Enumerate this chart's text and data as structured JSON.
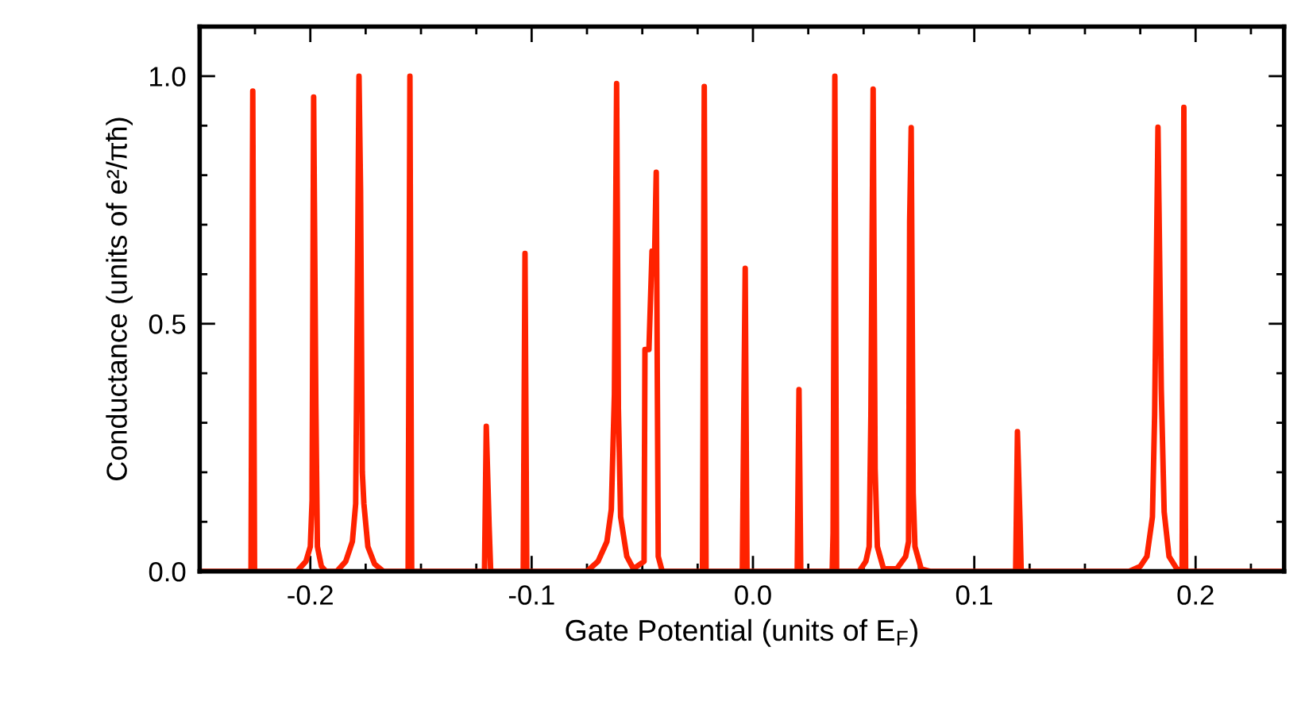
{
  "chart_data": {
    "type": "line",
    "xlabel": "Gate Potential (units of E$_{F}$)",
    "ylabel": "Conductance (units of e²/πħ)",
    "series": [
      {
        "color": "#ff2200",
        "x": [
          -0.25,
          -0.2268,
          -0.226,
          -0.2252,
          -0.206,
          -0.202,
          -0.2,
          -0.1992,
          -0.1985,
          -0.1975,
          -0.1968,
          -0.195,
          -0.193,
          -0.188,
          -0.184,
          -0.181,
          -0.1795,
          -0.1788,
          -0.178,
          -0.1773,
          -0.1765,
          -0.1758,
          -0.174,
          -0.171,
          -0.167,
          -0.1558,
          -0.155,
          -0.1542,
          -0.1213,
          -0.1205,
          -0.1192,
          -0.1185,
          -0.1038,
          -0.103,
          -0.1022,
          -0.075,
          -0.07,
          -0.066,
          -0.064,
          -0.0626,
          -0.0616,
          -0.0608,
          -0.0598,
          -0.057,
          -0.054,
          -0.0492,
          -0.0488,
          -0.047,
          -0.0456,
          -0.0444,
          -0.0437,
          -0.0428,
          -0.041,
          -0.0228,
          -0.022,
          -0.0212,
          -0.0048,
          -0.0043,
          -0.0035,
          -0.0027,
          0.02,
          0.0208,
          0.0216,
          0.0358,
          0.0362,
          0.037,
          0.0378,
          0.048,
          0.051,
          0.0525,
          0.0533,
          0.0543,
          0.0552,
          0.0562,
          0.059,
          0.065,
          0.069,
          0.0703,
          0.0708,
          0.0715,
          0.0724,
          0.0732,
          0.076,
          0.08,
          0.1187,
          0.1195,
          0.1207,
          0.1212,
          0.17,
          0.175,
          0.178,
          0.1805,
          0.1815,
          0.183,
          0.1845,
          0.1858,
          0.188,
          0.1915,
          0.1935,
          0.1939,
          0.1947,
          0.1955,
          0.24
        ],
        "values": [
          0,
          0,
          0.97,
          0,
          0,
          0.02,
          0.05,
          0.143,
          0.958,
          0.336,
          0.05,
          0.01,
          0,
          0,
          0.02,
          0.06,
          0.137,
          0.53,
          1.0,
          0.77,
          0.2,
          0.137,
          0.05,
          0.015,
          0,
          0,
          1.0,
          0,
          0,
          0.293,
          0.09,
          0,
          0,
          0.642,
          0,
          0,
          0.02,
          0.06,
          0.125,
          0.358,
          0.985,
          0.328,
          0.11,
          0.03,
          0.005,
          0.02,
          0.448,
          0.448,
          0.647,
          0.647,
          0.806,
          0.03,
          0,
          0,
          0.979,
          0,
          0,
          0.247,
          0.612,
          0,
          0,
          0.367,
          0,
          0,
          0.078,
          1.0,
          0,
          0,
          0.02,
          0.05,
          0.319,
          0.974,
          0.207,
          0.05,
          0.005,
          0.005,
          0.03,
          0.06,
          0.706,
          0.896,
          0.158,
          0.05,
          0.005,
          0,
          0,
          0.282,
          0.095,
          0,
          0,
          0.01,
          0.03,
          0.11,
          0.317,
          0.897,
          0.368,
          0.12,
          0.03,
          0.005,
          0,
          0,
          0.937,
          0,
          0
        ]
      }
    ],
    "xlim": [
      -0.25,
      0.24
    ],
    "ylim": [
      0,
      1.1
    ],
    "xticks": [
      {
        "value": -0.225,
        "label": null
      },
      -0.2,
      {
        "value": -0.175,
        "label": null
      },
      {
        "value": -0.15,
        "label": null
      },
      {
        "value": -0.125,
        "label": null
      },
      -0.1,
      {
        "value": -0.075,
        "label": null
      },
      {
        "value": -0.05,
        "label": null
      },
      {
        "value": -0.025,
        "label": null
      },
      {
        "value": 0,
        "label": "0.0"
      },
      {
        "value": 0.025,
        "label": null
      },
      {
        "value": 0.05,
        "label": null
      },
      {
        "value": 0.075,
        "label": null
      },
      0.1,
      {
        "value": 0.125,
        "label": null
      },
      {
        "value": 0.15,
        "label": null
      },
      {
        "value": 0.175,
        "label": null
      },
      0.2,
      {
        "value": 0.225,
        "label": null
      }
    ],
    "yticks": [
      {
        "value": 0,
        "label": "0.0"
      },
      {
        "value": 0.1,
        "label": null
      },
      {
        "value": 0.2,
        "label": null
      },
      {
        "value": 0.3,
        "label": null
      },
      {
        "value": 0.4,
        "label": null
      },
      {
        "value": 0.5,
        "label": "0.5"
      },
      {
        "value": 0.6,
        "label": null
      },
      {
        "value": 0.7,
        "label": null
      },
      {
        "value": 0.8,
        "label": null
      },
      {
        "value": 0.9,
        "label": null
      },
      {
        "value": 1.0,
        "label": "1.0"
      }
    ],
    "grid": false,
    "legend": false,
    "line_style": "solid"
  }
}
